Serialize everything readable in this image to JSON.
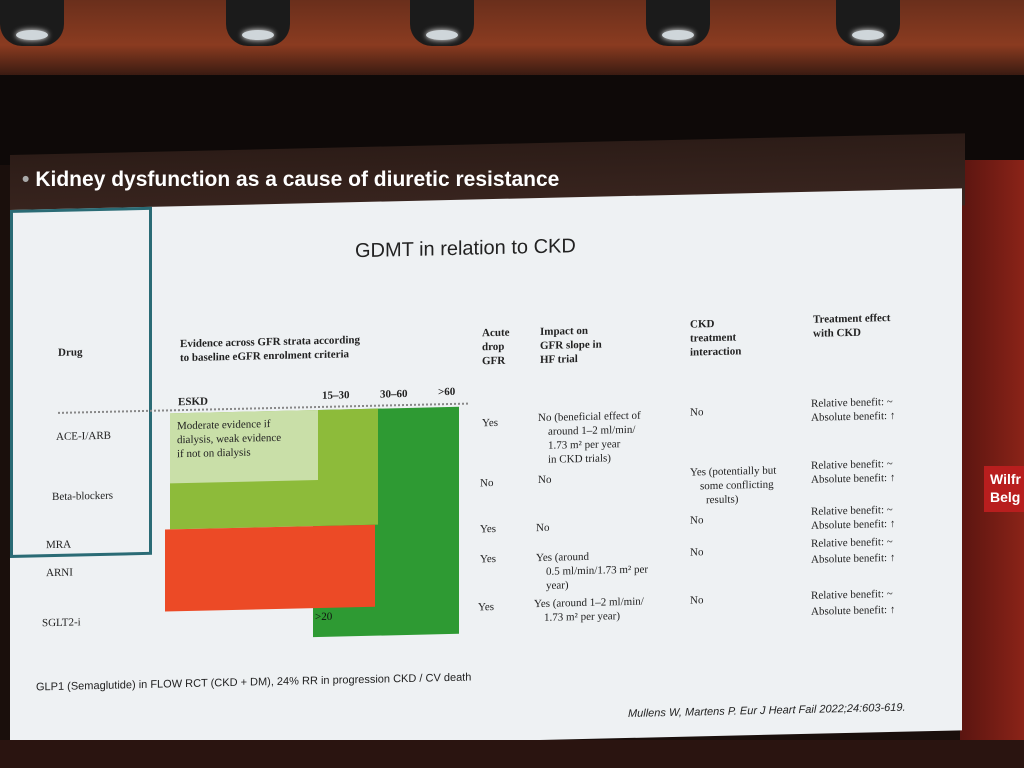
{
  "heading": {
    "bullet": "•",
    "text": "Kidney dysfunction as a cause of diuretic resistance"
  },
  "side_tag": {
    "line1": "Wilfr",
    "line2": "Belg"
  },
  "slide": {
    "title": "GDMT in relation to CKD",
    "headers": {
      "drug": "Drug",
      "evidence_l1": "Evidence across GFR strata according",
      "evidence_l2": "to baseline eGFR enrolment criteria",
      "acute_l1": "Acute",
      "acute_l2": "drop",
      "acute_l3": "GFR",
      "impact_l1": "Impact on",
      "impact_l2": "GFR slope in",
      "impact_l3": "HF trial",
      "ckd_l1": "CKD",
      "ckd_l2": "treatment",
      "ckd_l3": "interaction",
      "effect_l1": "Treatment effect",
      "effect_l2": "with CKD"
    },
    "strata": {
      "eskd": "ESKD",
      "s1": "15–30",
      "s2": "30–60",
      "s3": ">60"
    },
    "note_l1": "Moderate evidence if",
    "note_l2": "dialysis, weak evidence",
    "note_l3": "if not on dialysis",
    "gt20": ">20",
    "rows": [
      {
        "drug": "ACE-I/ARB",
        "acute": "Yes",
        "impact": [
          "No (beneficial effect of",
          "around 1–2 ml/min/",
          "1.73 m² per year",
          "in CKD trials)"
        ],
        "ckd": [
          "No"
        ],
        "effect": [
          "Relative benefit: ~",
          "Absolute benefit: ↑"
        ]
      },
      {
        "drug": "Beta-blockers",
        "acute": "No",
        "impact": [
          "No"
        ],
        "ckd": [
          "Yes (potentially but",
          "some conflicting",
          "results)"
        ],
        "effect": [
          "Relative benefit: ~",
          "Absolute benefit: ↑"
        ]
      },
      {
        "drug": "MRA",
        "acute": "Yes",
        "impact": [
          "No"
        ],
        "ckd": [
          "No"
        ],
        "effect": [
          "Relative benefit: ~",
          "Absolute benefit: ↑"
        ]
      },
      {
        "drug": "ARNI",
        "acute": "Yes",
        "impact": [
          "Yes (around",
          "0.5 ml/min/1.73 m² per",
          "year)"
        ],
        "ckd": [
          "No"
        ],
        "effect": [
          "Relative benefit: ~",
          "Absolute benefit: ↑"
        ]
      },
      {
        "drug": "SGLT2-i",
        "acute": "Yes",
        "impact": [
          "Yes (around 1–2 ml/min/",
          "1.73 m² per year)"
        ],
        "ckd": [
          "No"
        ],
        "effect": [
          "Relative benefit: ~",
          "Absolute benefit: ↑"
        ]
      }
    ],
    "footnote": "GLP1 (Semaglutide) in FLOW RCT (CKD + DM), 24% RR in progression CKD / CV death",
    "citation": "Mullens W, Martens P. Eur J Heart Fail 2022;24:603-619."
  },
  "colors": {
    "light_green": "#c9dfa8",
    "mid_green": "#8dbb3a",
    "dark_green": "#2e9a33",
    "red": "#ec4a26",
    "teal_border": "#2a6b75"
  }
}
